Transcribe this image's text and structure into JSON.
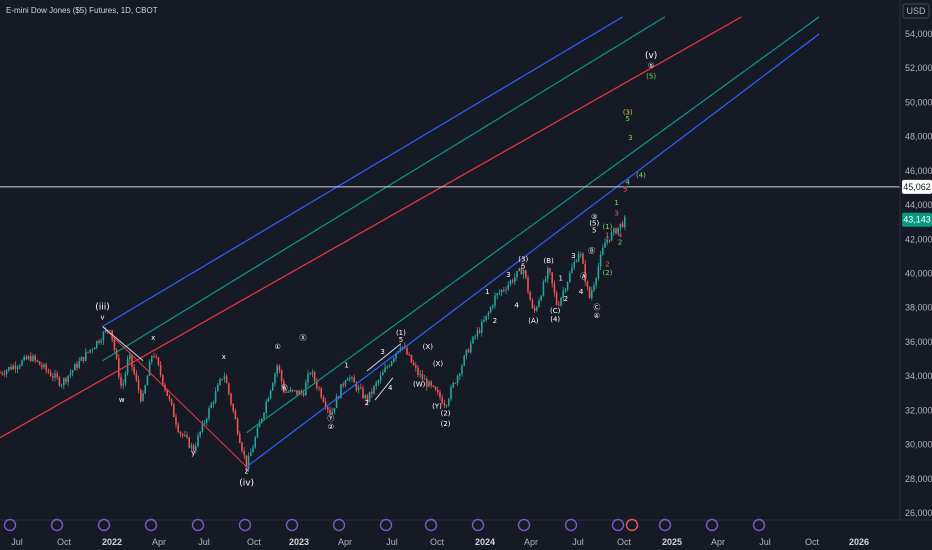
{
  "header": {
    "title": "E-mini Dow Jones ($5) Futures, 1D, CBOT"
  },
  "price_axis": {
    "currency": "USD",
    "ticks": [
      "54,000",
      "52,000",
      "50,000",
      "48,000",
      "46,000",
      "44,000",
      "42,000",
      "40,000",
      "38,000",
      "36,000",
      "34,000",
      "32,000",
      "30,000",
      "28,000",
      "26,000"
    ],
    "hline_label": "45,062",
    "last_price_label": "43,143"
  },
  "time_axis": {
    "labels": [
      {
        "text": "Jul",
        "bold": false
      },
      {
        "text": "Oct",
        "bold": false
      },
      {
        "text": "2022",
        "bold": true
      },
      {
        "text": "Apr",
        "bold": false
      },
      {
        "text": "Jul",
        "bold": false
      },
      {
        "text": "Oct",
        "bold": false
      },
      {
        "text": "2023",
        "bold": true
      },
      {
        "text": "Apr",
        "bold": false
      },
      {
        "text": "Jul",
        "bold": false
      },
      {
        "text": "Oct",
        "bold": false
      },
      {
        "text": "2024",
        "bold": true
      },
      {
        "text": "Apr",
        "bold": false
      },
      {
        "text": "Jul",
        "bold": false
      },
      {
        "text": "Oct",
        "bold": false
      },
      {
        "text": "2025",
        "bold": true
      },
      {
        "text": "Apr",
        "bold": false
      },
      {
        "text": "Jul",
        "bold": false
      },
      {
        "text": "Oct",
        "bold": false
      },
      {
        "text": "2026",
        "bold": true
      }
    ]
  },
  "colors": {
    "background": "#161a25",
    "up": "#26a69a",
    "down": "#ef5350",
    "channel_blue": "#2962ff",
    "channel_green": "#089981",
    "channel_red": "#f23645",
    "last_price_bg": "#089981",
    "wave_white": "#ffffff",
    "wave_green": "#7fdc5f",
    "wave_red": "#f7525f",
    "wave_yellow": "#f0c040"
  },
  "chart_data": {
    "type": "line",
    "title": "E-mini Dow Jones ($5) Futures, 1D, CBOT",
    "y_unit": "USD",
    "ylim": [
      26000,
      55000
    ],
    "xlim": [
      "2021-06-01",
      "2026-03-01"
    ],
    "series": [
      {
        "values_x": [
          "2021-06-01",
          "2021-08-01",
          "2021-09-30",
          "2022-01-04",
          "2022-01-27",
          "2022-02-10",
          "2022-03-08",
          "2022-03-29",
          "2022-05-20",
          "2022-06-17",
          "2022-08-16",
          "2022-09-30",
          "2022-11-30",
          "2022-12-13",
          "2023-01-19",
          "2023-02-02",
          "2023-03-15",
          "2023-04-15",
          "2023-05-25",
          "2023-07-31",
          "2023-09-01",
          "2023-10-27",
          "2023-12-14",
          "2024-01-17",
          "2024-02-01",
          "2024-03-28",
          "2024-04-17",
          "2024-05-17",
          "2024-06-03",
          "2024-07-17",
          "2024-08-05",
          "2024-09-06",
          "2024-10-16"
        ],
        "values_y": [
          34200,
          35100,
          33600,
          36900,
          33200,
          35200,
          32500,
          35500,
          30800,
          29700,
          34200,
          28700,
          34700,
          33100,
          33000,
          34300,
          31800,
          34100,
          32600,
          35900,
          34200,
          32400,
          35800,
          37500,
          38600,
          40300,
          37600,
          40200,
          38100,
          41400,
          38500,
          41900,
          43143
        ]
      }
    ],
    "horizontal_line": 45062,
    "channels": [
      {
        "color": "#2962ff",
        "from": [
          "2022-09-30",
          28700
        ],
        "to": [
          "2025-11-01",
          54000
        ]
      },
      {
        "color": "#2962ff",
        "from": [
          "2021-12-20",
          36900
        ],
        "to": [
          "2024-10-10",
          55000
        ]
      },
      {
        "color": "#089981",
        "from": [
          "2022-09-30",
          30700
        ],
        "to": [
          "2025-11-01",
          55000
        ]
      },
      {
        "color": "#089981",
        "from": [
          "2021-12-20",
          34900
        ],
        "to": [
          "2025-01-01",
          55000
        ]
      },
      {
        "color": "#f23645",
        "from": [
          "2021-06-01",
          30400
        ],
        "to": [
          "2025-06-01",
          55000
        ]
      }
    ],
    "wave_labels": [
      {
        "t": "(iii)",
        "x": "2021-12-20",
        "y": 37900,
        "c": "white",
        "lg": true
      },
      {
        "t": "v",
        "x": "2021-12-20",
        "y": 37300,
        "c": "white"
      },
      {
        "t": "w",
        "x": "2022-01-27",
        "y": 32500,
        "c": "white"
      },
      {
        "t": "x",
        "x": "2022-03-30",
        "y": 36100,
        "c": "white"
      },
      {
        "t": "y",
        "x": "2022-06-17",
        "y": 29400,
        "c": "white"
      },
      {
        "t": "x",
        "x": "2022-08-16",
        "y": 35000,
        "c": "white"
      },
      {
        "t": "z",
        "x": "2022-09-30",
        "y": 28300,
        "c": "white"
      },
      {
        "t": "(iv)",
        "x": "2022-09-30",
        "y": 27600,
        "c": "white",
        "lg": true
      },
      {
        "t": "①",
        "x": "2022-11-30",
        "y": 35600,
        "c": "white"
      },
      {
        "t": "Ⓦ",
        "x": "2022-12-13",
        "y": 33200,
        "c": "white"
      },
      {
        "t": "Ⓧ",
        "x": "2023-01-19",
        "y": 36100,
        "c": "white"
      },
      {
        "t": "Ⓨ",
        "x": "2023-03-15",
        "y": 31400,
        "c": "white"
      },
      {
        "t": "②",
        "x": "2023-03-15",
        "y": 30900,
        "c": "white"
      },
      {
        "t": "1",
        "x": "2023-04-15",
        "y": 34500,
        "c": "white"
      },
      {
        "t": "2",
        "x": "2023-05-25",
        "y": 32300,
        "c": "white"
      },
      {
        "t": "3",
        "x": "2023-06-25",
        "y": 35300,
        "c": "white"
      },
      {
        "t": "4",
        "x": "2023-07-10",
        "y": 33200,
        "c": "white"
      },
      {
        "t": "(1)",
        "x": "2023-07-31",
        "y": 36400,
        "c": "white"
      },
      {
        "t": "5",
        "x": "2023-07-31",
        "y": 36000,
        "c": "white"
      },
      {
        "t": "(W)",
        "x": "2023-09-05",
        "y": 33400,
        "c": "white"
      },
      {
        "t": "(X)",
        "x": "2023-09-22",
        "y": 35600,
        "c": "white"
      },
      {
        "t": "(X)",
        "x": "2023-10-12",
        "y": 34600,
        "c": "white"
      },
      {
        "t": "(Y)",
        "x": "2023-10-10",
        "y": 32100,
        "c": "white"
      },
      {
        "t": "(2)",
        "x": "2023-10-27",
        "y": 31700,
        "c": "white"
      },
      {
        "t": "(2)",
        "x": "2023-10-27",
        "y": 31100,
        "c": "white"
      },
      {
        "t": "1",
        "x": "2024-01-17",
        "y": 38800,
        "c": "white"
      },
      {
        "t": "2",
        "x": "2024-02-01",
        "y": 37100,
        "c": "white"
      },
      {
        "t": "3",
        "x": "2024-02-28",
        "y": 39800,
        "c": "white"
      },
      {
        "t": "4",
        "x": "2024-03-15",
        "y": 38000,
        "c": "white"
      },
      {
        "t": "(3)",
        "x": "2024-03-28",
        "y": 40700,
        "c": "white"
      },
      {
        "t": "5",
        "x": "2024-03-28",
        "y": 40300,
        "c": "white"
      },
      {
        "t": "(A)",
        "x": "2024-04-17",
        "y": 37100,
        "c": "white"
      },
      {
        "t": "(B)",
        "x": "2024-05-17",
        "y": 40600,
        "c": "white"
      },
      {
        "t": "(C)",
        "x": "2024-05-30",
        "y": 37700,
        "c": "white"
      },
      {
        "t": "(4)",
        "x": "2024-05-30",
        "y": 37200,
        "c": "white"
      },
      {
        "t": "1",
        "x": "2024-06-10",
        "y": 39600,
        "c": "white"
      },
      {
        "t": "2",
        "x": "2024-06-20",
        "y": 38400,
        "c": "white"
      },
      {
        "t": "3",
        "x": "2024-07-05",
        "y": 40900,
        "c": "white"
      },
      {
        "t": "4",
        "x": "2024-07-20",
        "y": 38800,
        "c": "white"
      },
      {
        "t": "Ⓐ",
        "x": "2024-07-25",
        "y": 39700,
        "c": "white"
      },
      {
        "t": "Ⓑ",
        "x": "2024-08-10",
        "y": 41200,
        "c": "white"
      },
      {
        "t": "Ⓒ",
        "x": "2024-08-20",
        "y": 37900,
        "c": "white"
      },
      {
        "t": "④",
        "x": "2024-08-20",
        "y": 37400,
        "c": "white"
      },
      {
        "t": "③",
        "x": "2024-08-15",
        "y": 43200,
        "c": "white"
      },
      {
        "t": "(5)",
        "x": "2024-08-15",
        "y": 42800,
        "c": "white"
      },
      {
        "t": "5",
        "x": "2024-08-15",
        "y": 42400,
        "c": "white"
      },
      {
        "t": "(1)",
        "x": "2024-09-10",
        "y": 42600,
        "c": "green"
      },
      {
        "t": "1",
        "x": "2024-09-10",
        "y": 42100,
        "c": "red"
      },
      {
        "t": "2",
        "x": "2024-09-10",
        "y": 40400,
        "c": "red"
      },
      {
        "t": "(2)",
        "x": "2024-09-10",
        "y": 39900,
        "c": "green"
      },
      {
        "t": "1",
        "x": "2024-09-28",
        "y": 44000,
        "c": "green"
      },
      {
        "t": "3",
        "x": "2024-09-28",
        "y": 43400,
        "c": "red"
      },
      {
        "t": "4",
        "x": "2024-10-05",
        "y": 42100,
        "c": "red"
      },
      {
        "t": "2",
        "x": "2024-10-05",
        "y": 41700,
        "c": "green"
      },
      {
        "t": "5",
        "x": "2024-10-15",
        "y": 44800,
        "c": "red"
      },
      {
        "t": "4",
        "x": "2024-10-20",
        "y": 45200,
        "c": "green"
      },
      {
        "t": "(4)",
        "x": "2024-11-15",
        "y": 45600,
        "c": "green"
      },
      {
        "t": "3",
        "x": "2024-10-25",
        "y": 47800,
        "c": "green"
      },
      {
        "t": "(3)",
        "x": "2024-10-20",
        "y": 49300,
        "c": "yellow"
      },
      {
        "t": "5",
        "x": "2024-10-20",
        "y": 48900,
        "c": "green"
      },
      {
        "t": "(v)",
        "x": "2024-12-05",
        "y": 52600,
        "c": "white",
        "lg": true
      },
      {
        "t": "⑤",
        "x": "2024-12-05",
        "y": 52000,
        "c": "white"
      },
      {
        "t": "(5)",
        "x": "2024-12-05",
        "y": 51400,
        "c": "green"
      }
    ]
  }
}
